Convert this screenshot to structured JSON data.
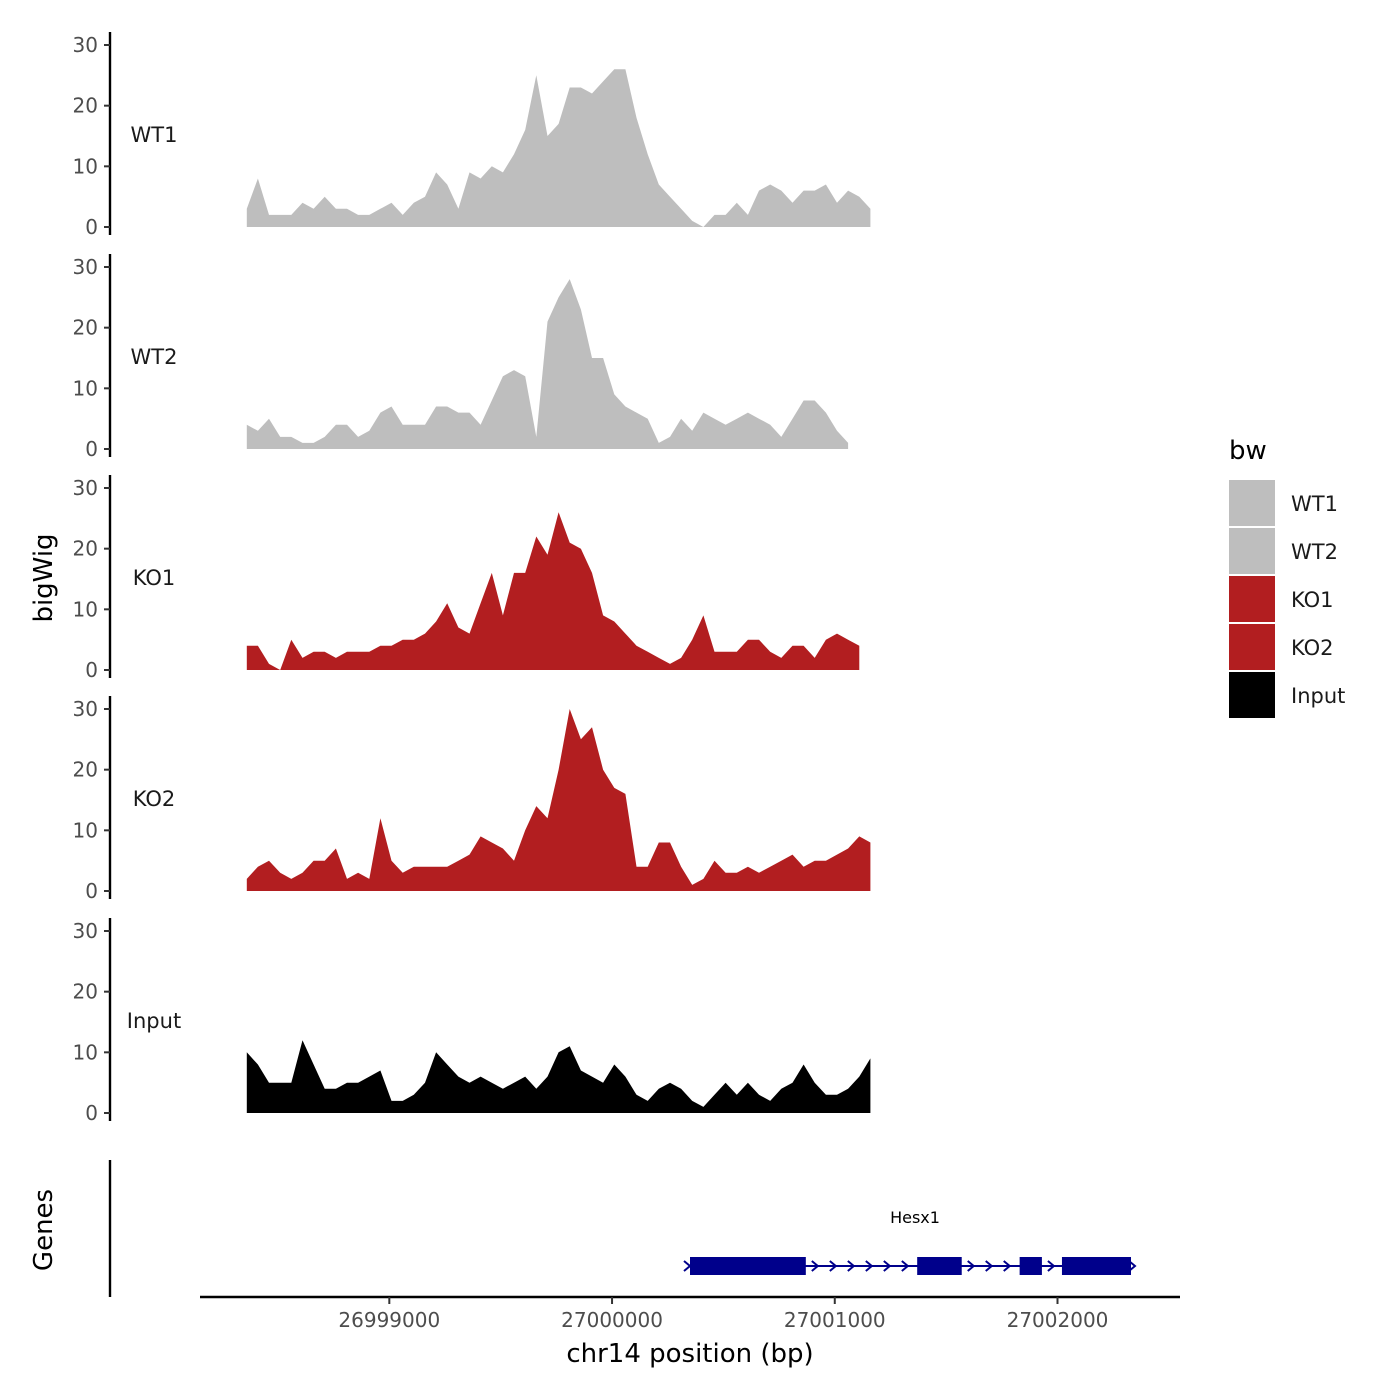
{
  "chart_data": {
    "type": "area",
    "chromosome": "chr14",
    "xlabel": "chr14 position (bp)",
    "ylabel": "bigWig",
    "gene_panel_label": "Genes",
    "xlim": [
      26998150,
      27002550
    ],
    "x_ticks": [
      26999000,
      27000000,
      27001000,
      27002000
    ],
    "x_tick_labels": [
      "26999000",
      "27000000",
      "27001000",
      "27002000"
    ],
    "ylim": [
      0,
      30
    ],
    "y_ticks": [
      0,
      10,
      20,
      30
    ],
    "y_tick_labels": [
      "0",
      "10",
      "20",
      "30"
    ],
    "x_start": 26998360,
    "step_bp": 50,
    "legend": {
      "title": "bw",
      "entries": [
        {
          "label": "WT1",
          "color": "#bebebe"
        },
        {
          "label": "WT2",
          "color": "#bebebe"
        },
        {
          "label": "KO1",
          "color": "#b21e20"
        },
        {
          "label": "KO2",
          "color": "#b21e20"
        },
        {
          "label": "Input",
          "color": "#000000"
        }
      ]
    },
    "series": [
      {
        "name": "WT1",
        "color": "#bebebe",
        "values": [
          3,
          8,
          2,
          2,
          2,
          4,
          3,
          5,
          3,
          3,
          2,
          2,
          3,
          4,
          2,
          4,
          5,
          9,
          7,
          3,
          9,
          8,
          10,
          9,
          12,
          16,
          25,
          15,
          17,
          23,
          23,
          22,
          24,
          26,
          26,
          18,
          12,
          7,
          5,
          3,
          1,
          0,
          2,
          2,
          4,
          2,
          6,
          7,
          6,
          4,
          6,
          6,
          7,
          4,
          6,
          5,
          3
        ]
      },
      {
        "name": "WT2",
        "color": "#bebebe",
        "values": [
          4,
          3,
          5,
          2,
          2,
          1,
          1,
          2,
          4,
          4,
          2,
          3,
          6,
          7,
          4,
          4,
          4,
          7,
          7,
          6,
          6,
          4,
          8,
          12,
          13,
          12,
          2,
          21,
          25,
          28,
          23,
          15,
          15,
          9,
          7,
          6,
          5,
          1,
          2,
          5,
          3,
          6,
          5,
          4,
          5,
          6,
          5,
          4,
          2,
          5,
          8,
          8,
          6,
          3,
          1
        ]
      },
      {
        "name": "KO1",
        "color": "#b21e20",
        "values": [
          4,
          4,
          1,
          0,
          5,
          2,
          3,
          3,
          2,
          3,
          3,
          3,
          4,
          4,
          5,
          5,
          6,
          8,
          11,
          7,
          6,
          11,
          16,
          9,
          16,
          16,
          22,
          19,
          26,
          21,
          20,
          16,
          9,
          8,
          6,
          4,
          3,
          2,
          1,
          2,
          5,
          9,
          3,
          3,
          3,
          5,
          5,
          3,
          2,
          4,
          4,
          2,
          5,
          6,
          5,
          4
        ]
      },
      {
        "name": "KO2",
        "color": "#b21e20",
        "values": [
          2,
          4,
          5,
          3,
          2,
          3,
          5,
          5,
          7,
          2,
          3,
          2,
          12,
          5,
          3,
          4,
          4,
          4,
          4,
          5,
          6,
          9,
          8,
          7,
          5,
          10,
          14,
          12,
          20,
          30,
          25,
          27,
          20,
          17,
          16,
          4,
          4,
          8,
          8,
          4,
          1,
          2,
          5,
          3,
          3,
          4,
          3,
          4,
          5,
          6,
          4,
          5,
          5,
          6,
          7,
          9,
          8
        ]
      },
      {
        "name": "Input",
        "color": "#000000",
        "values": [
          10,
          8,
          5,
          5,
          5,
          12,
          8,
          4,
          4,
          5,
          5,
          6,
          7,
          2,
          2,
          3,
          5,
          10,
          8,
          6,
          5,
          6,
          5,
          4,
          5,
          6,
          4,
          6,
          10,
          11,
          7,
          6,
          5,
          8,
          6,
          3,
          2,
          4,
          5,
          4,
          2,
          1,
          3,
          5,
          3,
          5,
          3,
          2,
          4,
          5,
          8,
          5,
          3,
          3,
          4,
          6,
          9
        ]
      }
    ],
    "genes": [
      {
        "name": "Hesx1",
        "start": 27000350,
        "end": 27002330,
        "strand": "+",
        "exons": [
          [
            27000350,
            27000870
          ],
          [
            27001370,
            27001570
          ],
          [
            27001830,
            27001930
          ],
          [
            27002020,
            27002330
          ]
        ]
      }
    ]
  }
}
